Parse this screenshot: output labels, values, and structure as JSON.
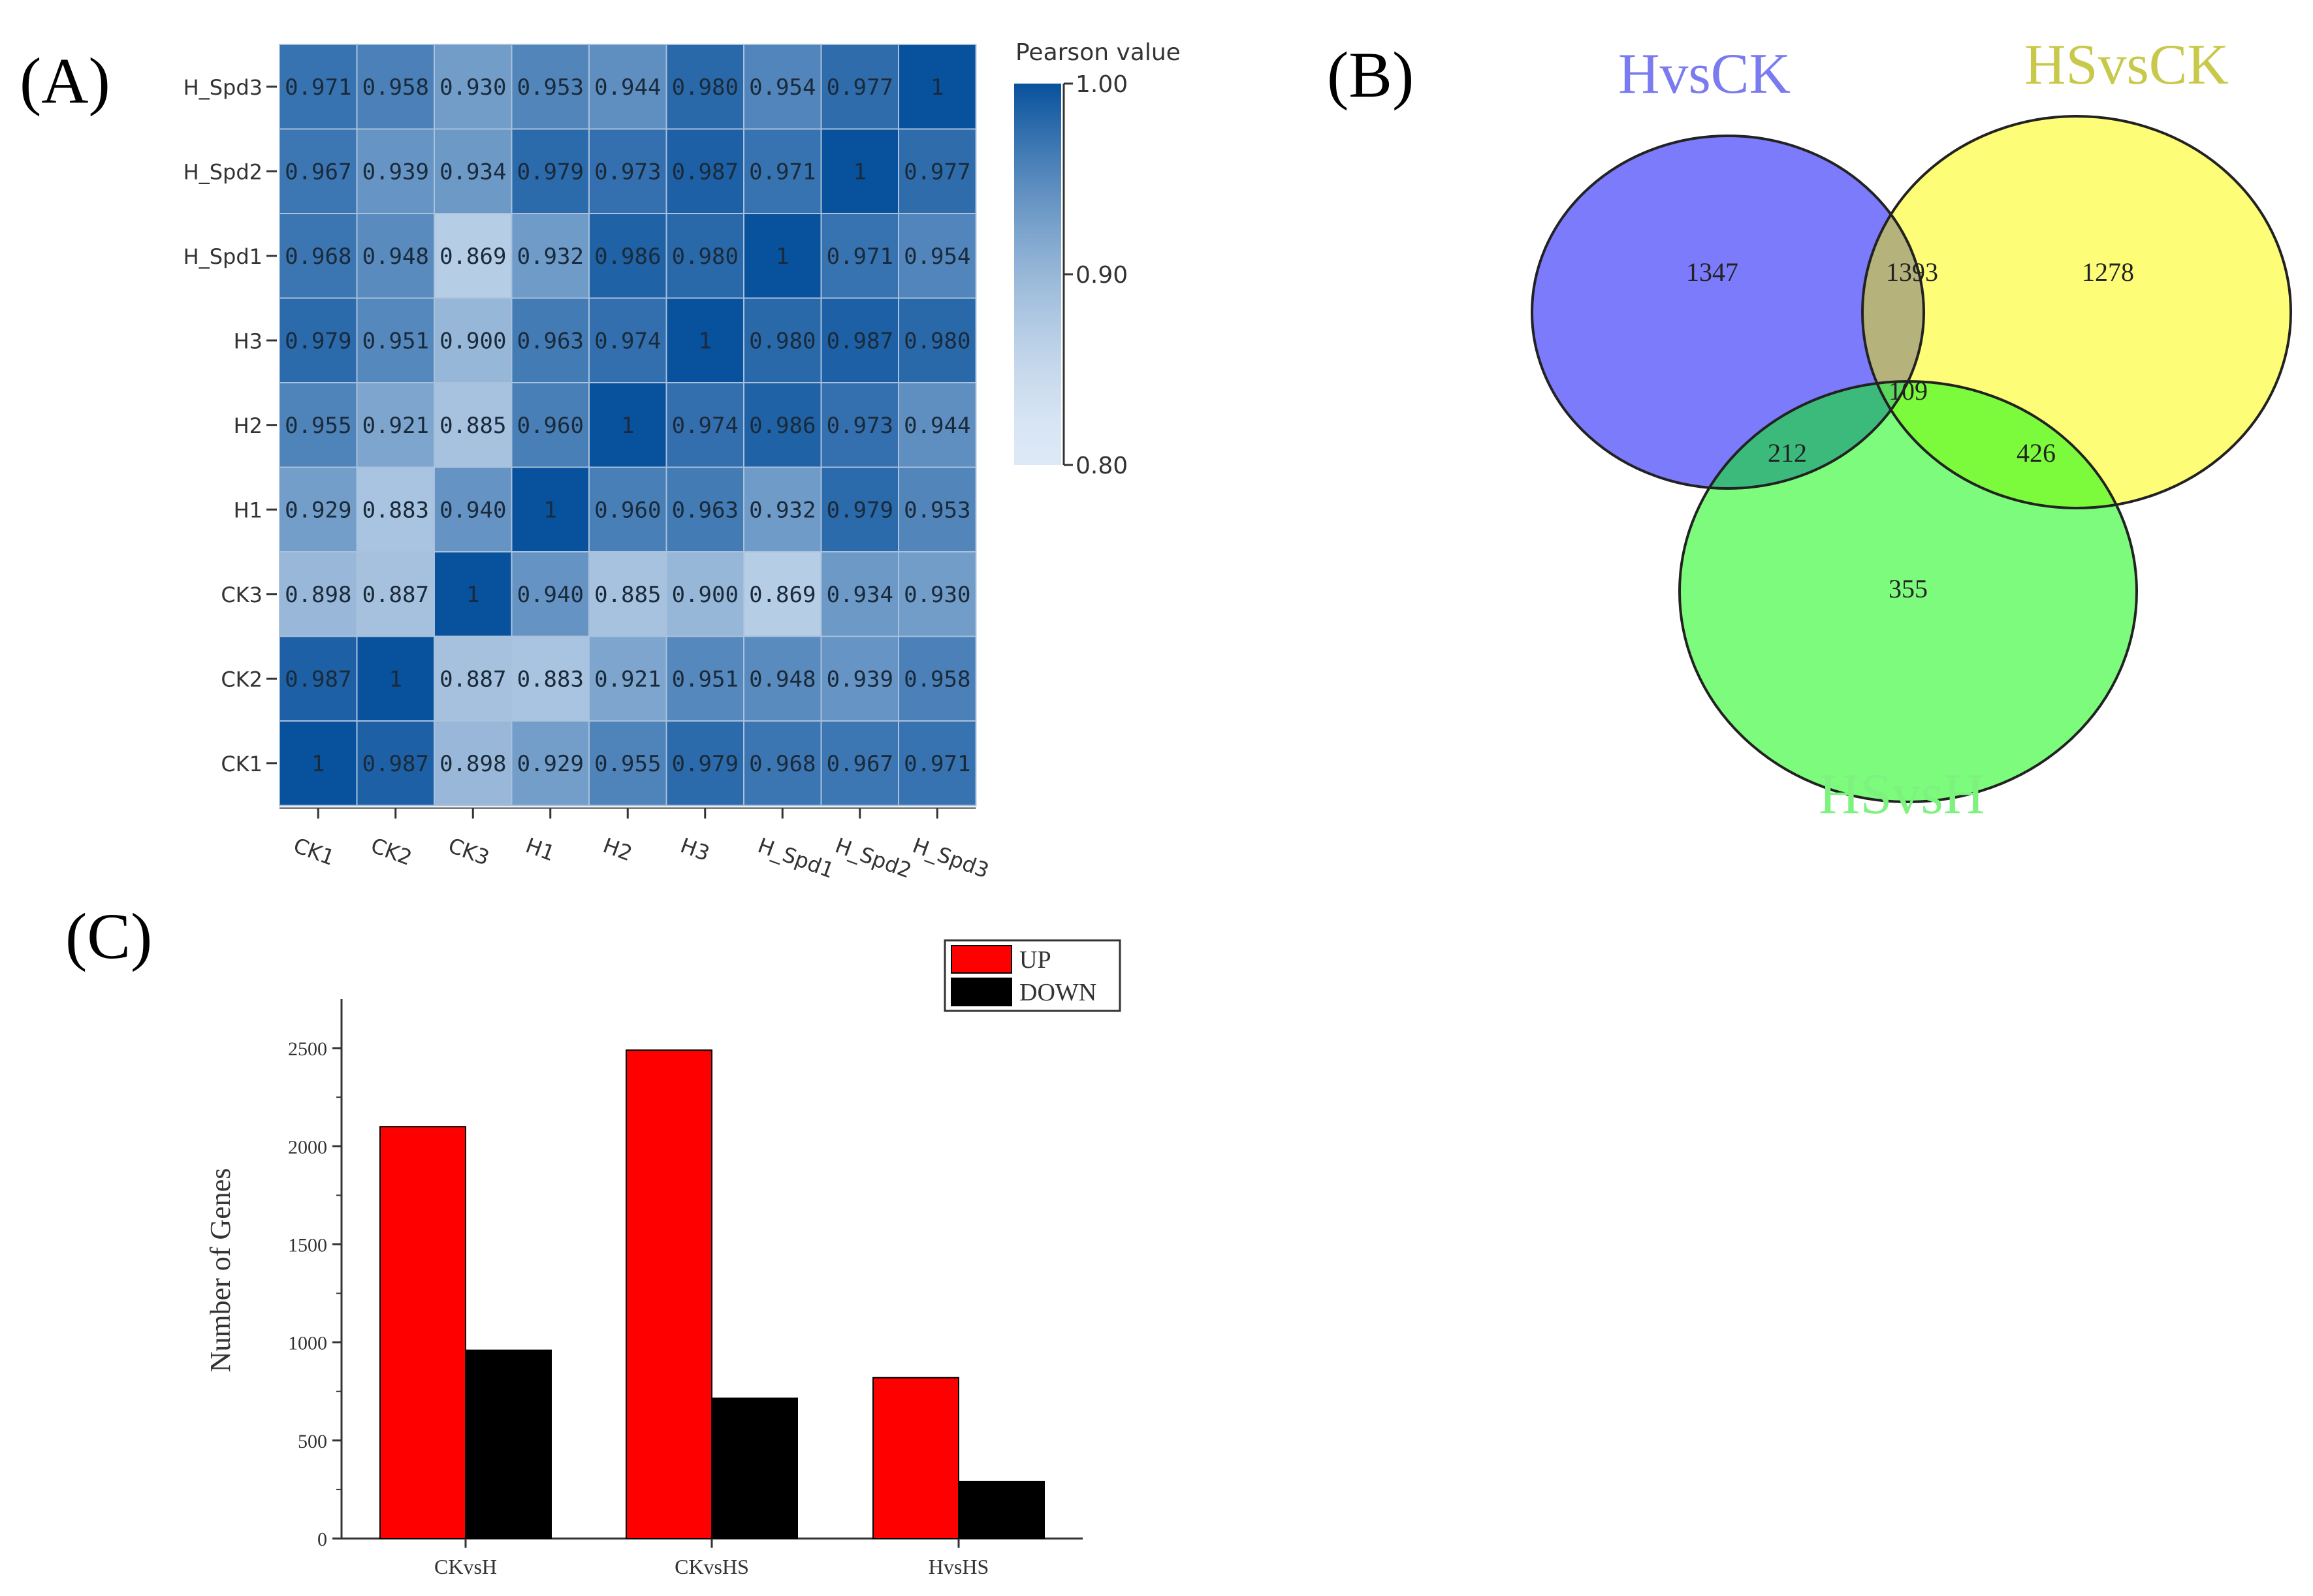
{
  "panels": {
    "a": {
      "label": "(A)"
    },
    "b": {
      "label": "(B)"
    },
    "c": {
      "label": "(C)"
    }
  },
  "chart_data": [
    {
      "type": "heatmap",
      "title": "",
      "rows": [
        "H_Spd3",
        "H_Spd2",
        "H_Spd1",
        "H3",
        "H2",
        "H1",
        "CK3",
        "CK2",
        "CK1"
      ],
      "columns": [
        "CK1",
        "CK2",
        "CK3",
        "H1",
        "H2",
        "H3",
        "H_Spd1",
        "H_Spd2",
        "H_Spd3"
      ],
      "values": [
        [
          "0.971",
          "0.958",
          "0.930",
          "0.953",
          "0.944",
          "0.980",
          "0.954",
          "0.977",
          "1"
        ],
        [
          "0.967",
          "0.939",
          "0.934",
          "0.979",
          "0.973",
          "0.987",
          "0.971",
          "1",
          "0.977"
        ],
        [
          "0.968",
          "0.948",
          "0.869",
          "0.932",
          "0.986",
          "0.980",
          "1",
          "0.971",
          "0.954"
        ],
        [
          "0.979",
          "0.951",
          "0.900",
          "0.963",
          "0.974",
          "1",
          "0.980",
          "0.987",
          "0.980"
        ],
        [
          "0.955",
          "0.921",
          "0.885",
          "0.960",
          "1",
          "0.974",
          "0.986",
          "0.973",
          "0.944"
        ],
        [
          "0.929",
          "0.883",
          "0.940",
          "1",
          "0.960",
          "0.963",
          "0.932",
          "0.979",
          "0.953"
        ],
        [
          "0.898",
          "0.887",
          "1",
          "0.940",
          "0.885",
          "0.900",
          "0.869",
          "0.934",
          "0.930"
        ],
        [
          "0.987",
          "1",
          "0.887",
          "0.883",
          "0.921",
          "0.951",
          "0.948",
          "0.939",
          "0.958"
        ],
        [
          "1",
          "0.987",
          "0.898",
          "0.929",
          "0.955",
          "0.979",
          "0.968",
          "0.967",
          "0.971"
        ]
      ],
      "colorbar": {
        "title": "Pearson value",
        "ticks": [
          "1.00",
          "0.90",
          "0.80"
        ],
        "range": [
          0.8,
          1.0
        ],
        "color_low": "#dde9f6",
        "color_high": "#08519c"
      }
    },
    {
      "type": "venn",
      "sets": [
        {
          "name": "HvsCK",
          "color": "#7b7bfb",
          "label_color": "#7b7bf0"
        },
        {
          "name": "HSvsCK",
          "color": "#fdfd78",
          "label_color": "#c8c84a"
        },
        {
          "name": "HSvsH",
          "color": "#7dfb7d",
          "label_color": "#7ef27e"
        }
      ],
      "regions": [
        {
          "id": "HvsCK_only",
          "value": "1347"
        },
        {
          "id": "HvsCK_HSvsCK",
          "value": "1393"
        },
        {
          "id": "HSvsCK_only",
          "value": "1278"
        },
        {
          "id": "all_three",
          "value": "109"
        },
        {
          "id": "HvsCK_HSvsH",
          "value": "212"
        },
        {
          "id": "HSvsCK_HSvsH",
          "value": "426"
        },
        {
          "id": "HSvsH_only",
          "value": "355"
        }
      ],
      "region_colors": {
        "HvsCK_HSvsCK": "#b5b27c",
        "HvsCK_HSvsH": "#3cba7c",
        "HSvsCK_HSvsH": "#7cfb3c",
        "all_three": "#5dd65d"
      }
    },
    {
      "type": "bar",
      "categories": [
        "CKvsH",
        "CKvsHS",
        "HvsHS"
      ],
      "series": [
        {
          "name": "UP",
          "color": "#ff0000",
          "values": [
            2100,
            2490,
            820
          ]
        },
        {
          "name": "DOWN",
          "color": "#000000",
          "values": [
            960,
            715,
            290
          ]
        }
      ],
      "xlabel": "",
      "ylabel": "Number of Genes",
      "ylim": [
        0,
        2750
      ],
      "yticks": [
        "0",
        "500",
        "1000",
        "1500",
        "2000",
        "2500"
      ],
      "legend_position": "top-right",
      "grid": false
    }
  ]
}
